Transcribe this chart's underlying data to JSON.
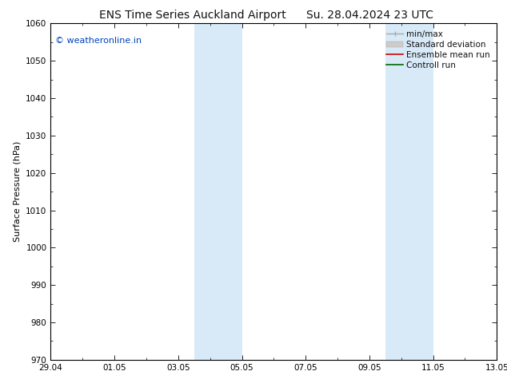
{
  "title_left": "ENS Time Series Auckland Airport",
  "title_right": "Su. 28.04.2024 23 UTC",
  "ylabel": "Surface Pressure (hPa)",
  "ylim": [
    970,
    1060
  ],
  "yticks": [
    970,
    980,
    990,
    1000,
    1010,
    1020,
    1030,
    1040,
    1050,
    1060
  ],
  "xlim_start": 0,
  "xlim_end": 14,
  "xtick_positions": [
    0,
    2,
    4,
    6,
    8,
    10,
    12,
    14
  ],
  "xtick_labels": [
    "29.04",
    "01.05",
    "03.05",
    "05.05",
    "07.05",
    "09.05",
    "11.05",
    "13.05"
  ],
  "shaded_bands": [
    {
      "xmin": 4.5,
      "xmax": 5.25
    },
    {
      "xmin": 5.25,
      "xmax": 6.0
    },
    {
      "xmin": 10.5,
      "xmax": 11.25
    },
    {
      "xmin": 11.25,
      "xmax": 12.0
    }
  ],
  "shade_color": "#d8eaf8",
  "shade_alpha": 1.0,
  "background_color": "#ffffff",
  "plot_bg_color": "#ffffff",
  "watermark_text": "© weatheronline.in",
  "watermark_color": "#0044bb",
  "watermark_fontsize": 8,
  "legend_items": [
    {
      "label": "min/max",
      "color": "#aaaaaa",
      "lw": 1.2
    },
    {
      "label": "Standard deviation",
      "color": "#cccccc",
      "lw": 6
    },
    {
      "label": "Ensemble mean run",
      "color": "#cc0000",
      "lw": 1.2
    },
    {
      "label": "Controll run",
      "color": "#006600",
      "lw": 1.2
    }
  ],
  "title_fontsize": 10,
  "ylabel_fontsize": 8,
  "tick_fontsize": 7.5,
  "legend_fontsize": 7.5,
  "tick_color": "#000000",
  "spine_color": "#000000"
}
